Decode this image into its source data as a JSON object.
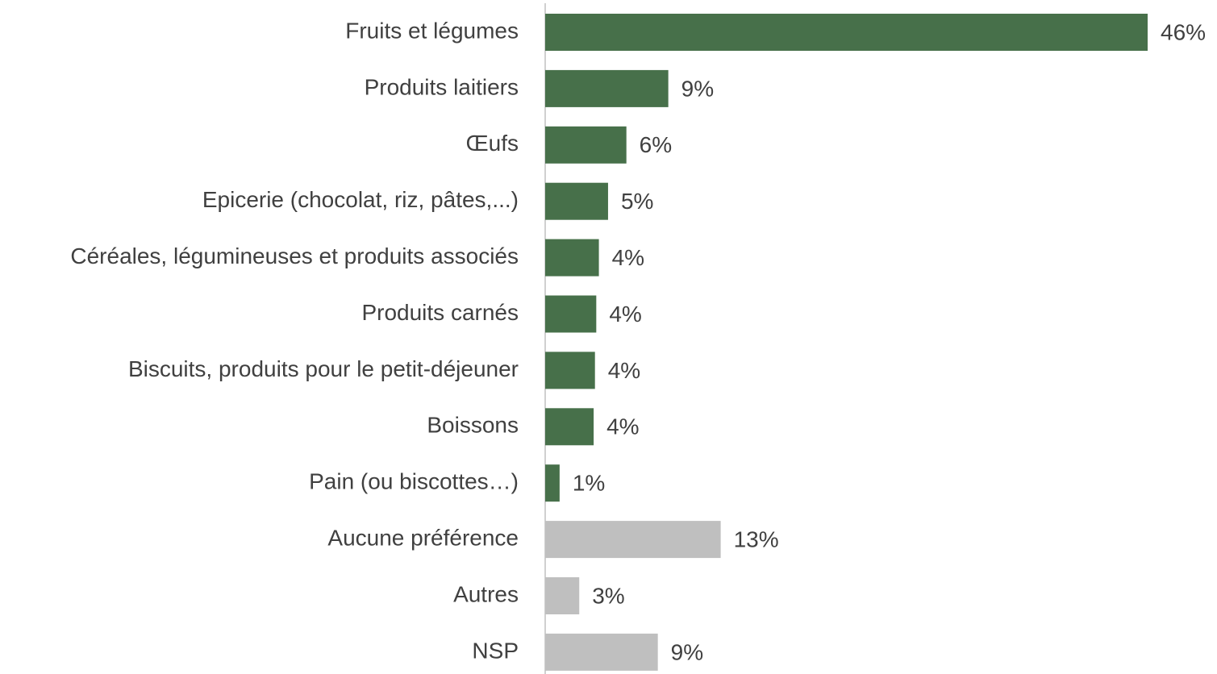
{
  "chart_data": {
    "type": "bar",
    "orientation": "horizontal",
    "categories": [
      "Fruits et légumes",
      "Produits laitiers",
      "Œufs",
      "Epicerie (chocolat, riz, pâtes,...)",
      "Céréales, légumineuses et produits associés",
      "Produits carnés",
      "Biscuits, produits pour le petit-déjeuner",
      "Boissons",
      "Pain (ou biscottes…)",
      "Aucune préférence",
      "Autres",
      "NSP"
    ],
    "values": [
      46,
      9.4,
      6.2,
      4.8,
      4.1,
      3.9,
      3.8,
      3.7,
      1.1,
      13.4,
      2.6,
      8.6
    ],
    "value_labels": [
      "46%",
      "9%",
      "6%",
      "5%",
      "4%",
      "4%",
      "4%",
      "4%",
      "1%",
      "13%",
      "3%",
      "9%"
    ],
    "colors": [
      "#47704a",
      "#47704a",
      "#47704a",
      "#47704a",
      "#47704a",
      "#47704a",
      "#47704a",
      "#47704a",
      "#47704a",
      "#bfbfbf",
      "#bfbfbf",
      "#bfbfbf"
    ]
  }
}
